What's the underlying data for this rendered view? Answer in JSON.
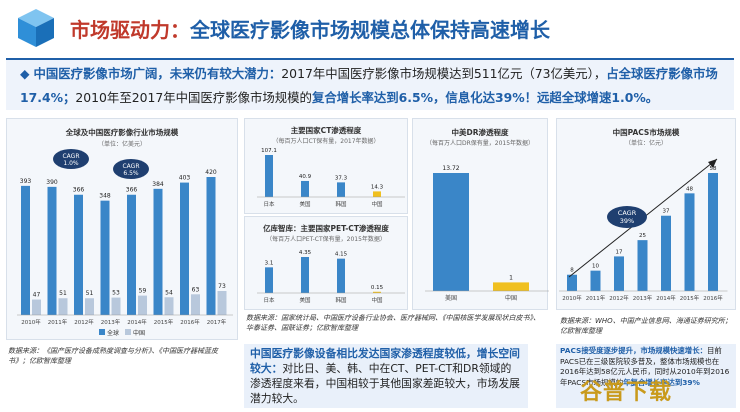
{
  "header": {
    "title_part1": "市场驱动力：",
    "title_part2": "全球医疗影像市场规模总体保持高速增长"
  },
  "banner": {
    "bullet": "◆",
    "seg1": "中国医疗影像市场广阔，未来仍有较大潜力：",
    "seg2": "2017年中国医疗影像市场规模达到511亿元（73亿美元），",
    "seg3": "占全球医疗影像市场17.4%；",
    "seg4": "2010年至2017年中国医疗影像市场规模的",
    "seg5": "复合增长率达到6.5%，信息化达39%！远超全球增速1.0%。"
  },
  "colors": {
    "accent_blue": "#1f5fa8",
    "bar_blue": "#3a86c8",
    "bar_grey": "#b8c8dc",
    "bar_yellow": "#f0c020",
    "title_red": "#c0392b"
  },
  "chart_data": [
    {
      "type": "bar",
      "title": "全球及中国医疗影像行业市场规模",
      "subtitle": "（单位：亿美元）",
      "categories": [
        "2010年",
        "2011年",
        "2012年",
        "2013年",
        "2014年",
        "2015年",
        "2016年",
        "2017年"
      ],
      "series": [
        {
          "name": "全球",
          "values": [
            393,
            390,
            366,
            348,
            366,
            384,
            403,
            420
          ]
        },
        {
          "name": "中国",
          "values": [
            47,
            51,
            51,
            53,
            59,
            54,
            63,
            73
          ]
        }
      ],
      "annotations": [
        "CAGR 1.0%",
        "CAGR 6.5%"
      ],
      "legend": "bottom"
    },
    {
      "type": "bar",
      "title": "主要国家CT渗透程度",
      "subtitle": "（每百万人口CT保有量，2017年数据）",
      "categories": [
        "日本",
        "美国",
        "韩国",
        "中国"
      ],
      "values": [
        107.1,
        40.9,
        37.3,
        14.3
      ]
    },
    {
      "type": "bar",
      "title": "亿库智库：主要国家PET-CT渗透程度",
      "subtitle": "（每百万人口PET-CT保有量，2015年数据）",
      "categories": [
        "日本",
        "美国",
        "韩国",
        "中国"
      ],
      "values": [
        3.1,
        4.35,
        4.15,
        0.15
      ]
    },
    {
      "type": "bar",
      "title": "中美DR渗透程度",
      "subtitle": "（每百万人口DR保有量，2015年数据）",
      "categories": [
        "美国",
        "中国"
      ],
      "values": [
        13.72,
        1
      ]
    },
    {
      "type": "bar",
      "title": "中国PACS市场规模",
      "subtitle": "（单位：亿元）",
      "categories": [
        "2010年",
        "2011年",
        "2012年",
        "2013年",
        "2014年",
        "2015年",
        "2016年"
      ],
      "values": [
        8,
        10,
        17,
        25,
        37,
        48,
        58
      ],
      "annotations": [
        "CAGR 39%"
      ]
    }
  ],
  "sources": {
    "left": "数据来源：《国产医疗设备成熟度调查与分析》、《中国医疗器械蓝皮书》；亿欧智库整理",
    "middle": "数据来源：国家统计局、中国医疗设备行业协会、医疗器械网、《中国核医学发展现状白皮书》、华泰证券、国联证券；亿欧智库整理",
    "right": "数据来源：WHO、中国产业信息网、海通证券研究所；亿欧智库整理"
  },
  "highlight": {
    "bold": "中国医疗影像设备相比发达国家渗透程度较低，增长空间较大：",
    "text": "对比日、美、韩、中在CT、PET-CT和DR领域的渗透程度来看，中国相较于其他国家差距较大，市场发展潜力较大。"
  },
  "pacs_note": {
    "bold": "PACS接受度逐步提升，市场规模快速增长：",
    "text": "目前PACS已在三级医院较多普及，整体市场规模也在2016年达到58亿元人民币，同时从2010年到2016年PACS市场规模的",
    "bold2": "年复合增长率达到39%"
  },
  "watermark": "谷普下载"
}
